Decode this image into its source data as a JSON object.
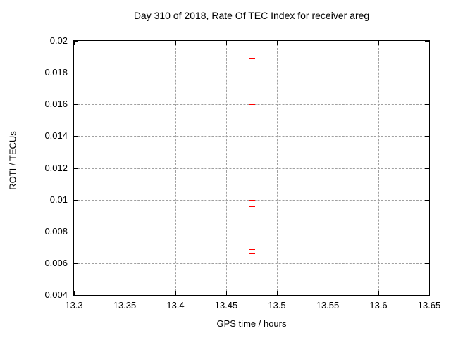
{
  "chart_data": {
    "type": "scatter",
    "title": "Day 310 of 2018, Rate Of TEC Index for receiver areg",
    "xlabel": "GPS time / hours",
    "ylabel": "ROTI / TECUs",
    "xlim": [
      13.3,
      13.65
    ],
    "ylim": [
      0.004,
      0.02
    ],
    "xticks": [
      13.3,
      13.35,
      13.4,
      13.45,
      13.5,
      13.55,
      13.6,
      13.65
    ],
    "xtick_labels": [
      "13.3",
      "13.35",
      "13.4",
      "13.45",
      "13.5",
      "13.55",
      "13.6",
      "13.65"
    ],
    "yticks": [
      0.004,
      0.006,
      0.008,
      0.01,
      0.012,
      0.014,
      0.016,
      0.018,
      0.02
    ],
    "ytick_labels": [
      "0.004",
      "0.006",
      "0.008",
      "0.01",
      "0.012",
      "0.014",
      "0.016",
      "0.018",
      "0.02"
    ],
    "grid": true,
    "legend": "none",
    "marker": "plus",
    "colors": {
      "marker": "#ff0000",
      "grid": "#a0a0a0",
      "frame": "#000000",
      "text": "#000000",
      "background": "#ffffff"
    },
    "series": [
      {
        "name": "ROTI",
        "points": [
          {
            "x": 13.475,
            "y": 0.0189
          },
          {
            "x": 13.475,
            "y": 0.016
          },
          {
            "x": 13.475,
            "y": 0.01
          },
          {
            "x": 13.475,
            "y": 0.0096
          },
          {
            "x": 13.475,
            "y": 0.008
          },
          {
            "x": 13.475,
            "y": 0.0069
          },
          {
            "x": 13.475,
            "y": 0.0066
          },
          {
            "x": 13.475,
            "y": 0.0059
          },
          {
            "x": 13.475,
            "y": 0.0044
          }
        ]
      }
    ]
  }
}
